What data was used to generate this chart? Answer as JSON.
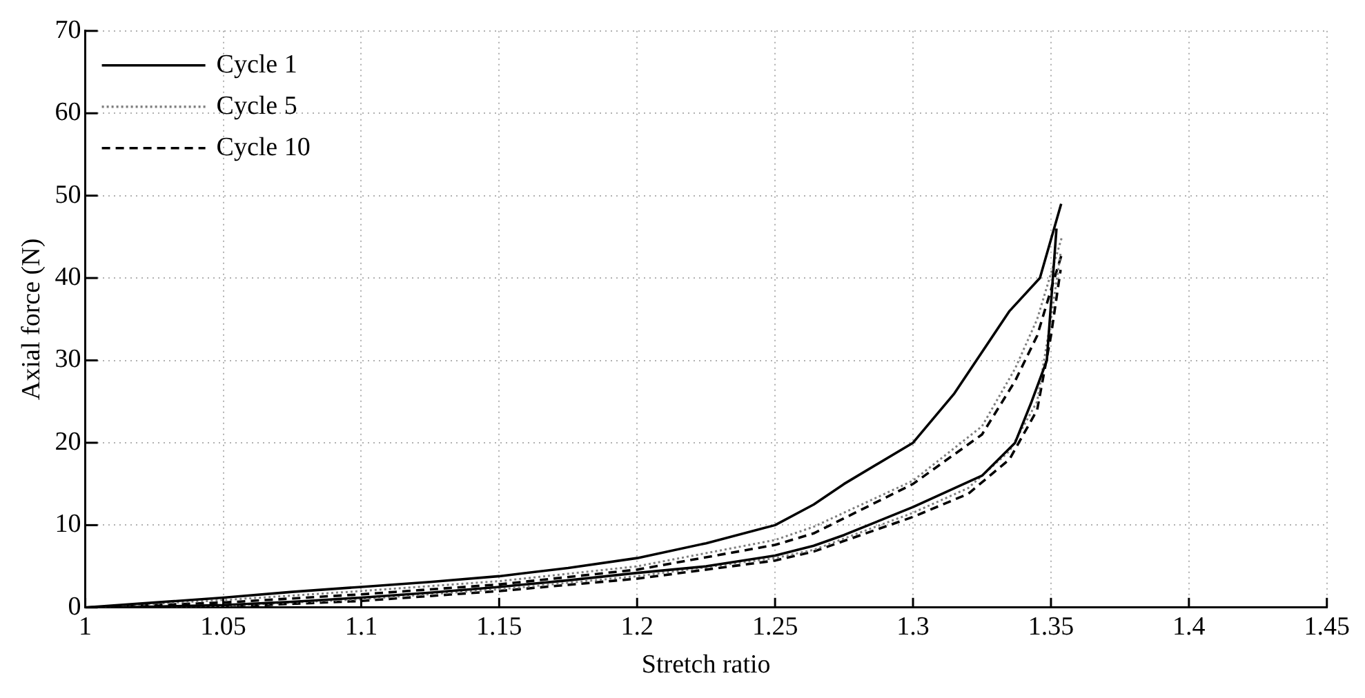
{
  "chart_data": {
    "type": "line",
    "xlabel": "Stretch ratio",
    "ylabel": "Axial force (N)",
    "xlim": [
      1,
      1.45
    ],
    "xticks": [
      1,
      1.05,
      1.1,
      1.15,
      1.2,
      1.25,
      1.3,
      1.35,
      1.4,
      1.45
    ],
    "ylim": [
      0,
      70
    ],
    "yticks": [
      0,
      10,
      20,
      30,
      40,
      50,
      60,
      70
    ],
    "grid": true,
    "legend": "top left",
    "marker": "none",
    "series": [
      {
        "name": "Cycle 1",
        "color": "#000000",
        "line_style": "solid",
        "x": [
          1,
          1.025,
          1.05,
          1.075,
          1.1,
          1.125,
          1.15,
          1.175,
          1.2,
          1.225,
          1.25,
          1.264,
          1.275,
          1.3,
          1.315,
          1.325,
          1.335,
          1.346,
          1.3537
        ],
        "values": [
          0,
          0.6,
          1.2,
          1.9,
          2.5,
          3.1,
          3.8,
          4.8,
          6,
          7.8,
          10,
          12.5,
          15,
          20,
          26,
          31,
          36,
          40,
          49
        ]
      },
      {
        "color": "#000000",
        "line_style": "solid",
        "x": [
          1.01,
          1.025,
          1.05,
          1.075,
          1.1,
          1.125,
          1.15,
          1.175,
          1.2,
          1.225,
          1.25,
          1.264,
          1.275,
          1.3,
          1.325,
          1.337,
          1.343,
          1.3485,
          1.352
        ],
        "values": [
          0,
          0.1,
          0.3,
          0.7,
          1.2,
          1.8,
          2.5,
          3.3,
          4.2,
          5,
          6.3,
          7.5,
          8.8,
          12.2,
          16,
          20,
          25,
          30,
          46
        ]
      },
      {
        "name": "Cycle 5",
        "color": "#7f7f7f",
        "line_style": "dotted",
        "x": [
          1,
          1.05,
          1.1,
          1.15,
          1.2,
          1.25,
          1.264,
          1.3,
          1.325,
          1.337,
          1.345,
          1.354
        ],
        "values": [
          0,
          0.9,
          2,
          3.2,
          5,
          8.2,
          9.8,
          15.4,
          22,
          29,
          35,
          45
        ]
      },
      {
        "color": "#7f7f7f",
        "line_style": "dotted",
        "x": [
          1.01,
          1.05,
          1.1,
          1.15,
          1.2,
          1.25,
          1.264,
          1.3,
          1.32,
          1.335,
          1.345,
          1.35,
          1.3535
        ],
        "values": [
          0,
          0.2,
          1,
          2.2,
          3.8,
          6,
          7,
          11.5,
          14.5,
          19,
          25,
          35,
          43
        ]
      },
      {
        "name": "Cycle 10",
        "color": "#000000",
        "line_style": "dashed",
        "x": [
          1,
          1.05,
          1.1,
          1.15,
          1.2,
          1.25,
          1.264,
          1.3,
          1.325,
          1.337,
          1.345,
          1.354
        ],
        "values": [
          0,
          0.6,
          1.6,
          2.8,
          4.6,
          7.6,
          9,
          15,
          21,
          27.5,
          33,
          43
        ]
      },
      {
        "color": "#000000",
        "line_style": "dashed",
        "x": [
          1.01,
          1.05,
          1.1,
          1.15,
          1.2,
          1.25,
          1.264,
          1.3,
          1.32,
          1.335,
          1.345,
          1.35,
          1.3535
        ],
        "values": [
          0,
          0.1,
          0.8,
          2,
          3.5,
          5.7,
          6.8,
          11,
          13.8,
          18,
          24,
          33,
          41
        ]
      }
    ]
  }
}
